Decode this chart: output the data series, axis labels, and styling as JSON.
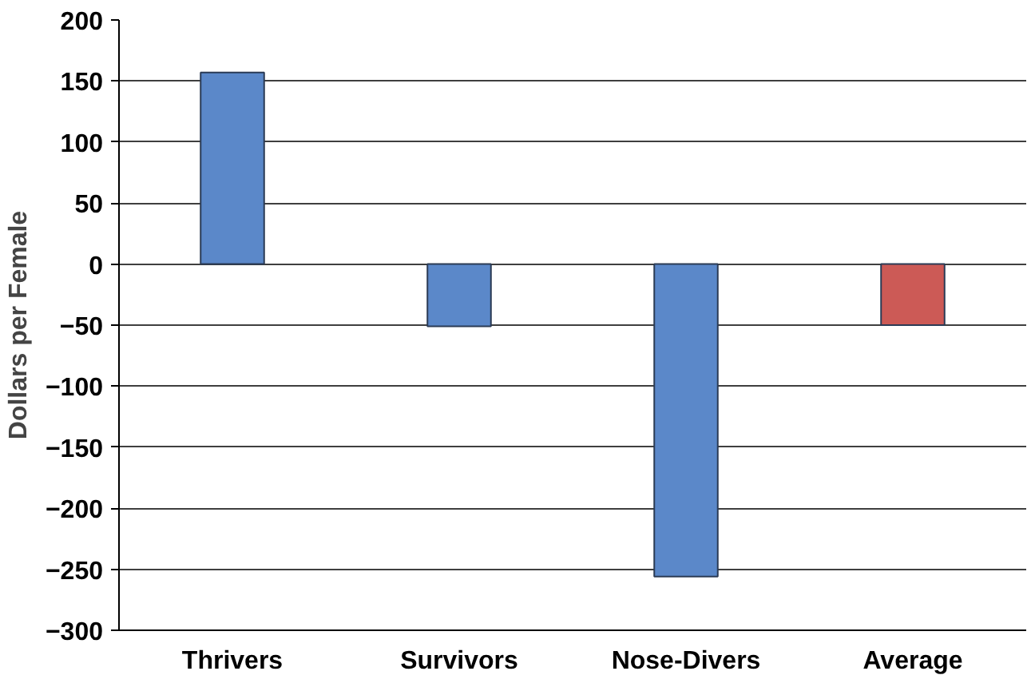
{
  "chart_data": {
    "type": "bar",
    "ylabel": "Dollars per Female",
    "categories": [
      "Thrivers",
      "Survivors",
      "Nose-Divers",
      "Average"
    ],
    "values": [
      157,
      -51,
      -256,
      -50
    ],
    "colors": [
      "#5b88c9",
      "#5b88c9",
      "#5b88c9",
      "#cc5a56"
    ],
    "ylim": [
      -300,
      200
    ],
    "yticks": [
      -300,
      -250,
      -200,
      -150,
      -100,
      -50,
      0,
      50,
      100,
      150,
      200
    ],
    "grid": "y"
  }
}
